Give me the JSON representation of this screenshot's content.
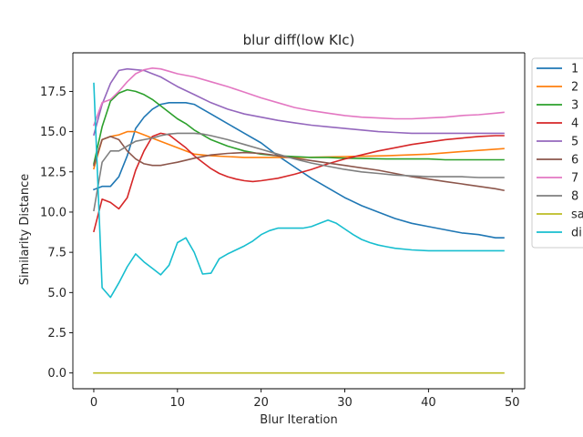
{
  "chart_data": {
    "type": "line",
    "title": "blur diff(low KIc)",
    "xlabel": "Blur Iteration",
    "ylabel": "Similarity Distance",
    "xlim": [
      -2.5,
      51.5
    ],
    "ylim": [
      -0.98,
      19.9
    ],
    "xticks": [
      0,
      10,
      20,
      30,
      40,
      50
    ],
    "yticks": [
      0.0,
      2.5,
      5.0,
      7.5,
      10.0,
      12.5,
      15.0,
      17.5
    ],
    "ytick_labels": [
      "0.0",
      "2.5",
      "5.0",
      "7.5",
      "10.0",
      "12.5",
      "15.0",
      "17.5"
    ],
    "grid": false,
    "legend": "outside-right",
    "series": [
      {
        "name": "1",
        "color": "#1f77b4",
        "x": [
          0,
          1,
          2,
          3,
          4,
          5,
          6,
          7,
          8,
          9,
          10,
          11,
          12,
          13,
          14,
          16,
          18,
          20,
          22,
          24,
          26,
          28,
          30,
          32,
          34,
          36,
          38,
          40,
          42,
          44,
          46,
          48,
          49
        ],
        "y": [
          11.4,
          11.6,
          11.6,
          12.2,
          13.5,
          15.2,
          15.9,
          16.4,
          16.7,
          16.8,
          16.8,
          16.8,
          16.7,
          16.4,
          16.1,
          15.5,
          14.9,
          14.3,
          13.5,
          12.8,
          12.1,
          11.5,
          10.9,
          10.4,
          10.0,
          9.6,
          9.3,
          9.1,
          8.9,
          8.7,
          8.6,
          8.4,
          8.4
        ]
      },
      {
        "name": "2",
        "color": "#ff7f0e",
        "x": [
          0,
          1,
          2,
          3,
          4,
          5,
          6,
          7,
          8,
          9,
          10,
          12,
          14,
          16,
          18,
          20,
          25,
          30,
          35,
          40,
          45,
          49
        ],
        "y": [
          12.7,
          14.5,
          14.7,
          14.8,
          15.0,
          15.0,
          14.8,
          14.6,
          14.4,
          14.2,
          14.0,
          13.6,
          13.5,
          13.45,
          13.4,
          13.4,
          13.4,
          13.45,
          13.5,
          13.6,
          13.8,
          13.95
        ]
      },
      {
        "name": "3",
        "color": "#2ca02c",
        "x": [
          0,
          1,
          2,
          3,
          4,
          5,
          6,
          7,
          8,
          9,
          10,
          11,
          12,
          14,
          16,
          18,
          20,
          22,
          24,
          26,
          28,
          30,
          35,
          40,
          42,
          45,
          49
        ],
        "y": [
          13.0,
          15.3,
          16.9,
          17.4,
          17.6,
          17.5,
          17.3,
          17.0,
          16.6,
          16.2,
          15.8,
          15.5,
          15.1,
          14.5,
          14.1,
          13.8,
          13.6,
          13.5,
          13.45,
          13.4,
          13.4,
          13.35,
          13.3,
          13.3,
          13.25,
          13.25,
          13.25
        ]
      },
      {
        "name": "4",
        "color": "#d62728",
        "x": [
          0,
          1,
          2,
          3,
          4,
          5,
          6,
          7,
          8,
          9,
          10,
          11,
          12,
          13,
          14,
          15,
          16,
          17,
          18,
          19,
          20,
          22,
          24,
          26,
          28,
          30,
          32,
          34,
          36,
          38,
          40,
          42,
          44,
          46,
          48,
          49
        ],
        "y": [
          8.8,
          10.8,
          10.6,
          10.2,
          10.9,
          12.6,
          13.8,
          14.7,
          14.9,
          14.8,
          14.4,
          14.0,
          13.5,
          13.1,
          12.7,
          12.4,
          12.2,
          12.05,
          11.95,
          11.9,
          11.95,
          12.1,
          12.35,
          12.65,
          13.0,
          13.3,
          13.55,
          13.8,
          14.0,
          14.2,
          14.35,
          14.5,
          14.6,
          14.7,
          14.75,
          14.75
        ]
      },
      {
        "name": "5",
        "color": "#9467bd",
        "x": [
          0,
          1,
          2,
          3,
          4,
          5,
          6,
          7,
          8,
          9,
          10,
          12,
          14,
          16,
          18,
          20,
          22,
          24,
          26,
          28,
          30,
          32,
          34,
          36,
          38,
          40,
          42,
          44,
          46,
          49
        ],
        "y": [
          14.8,
          16.7,
          18.0,
          18.8,
          18.9,
          18.85,
          18.8,
          18.6,
          18.4,
          18.1,
          17.8,
          17.3,
          16.8,
          16.4,
          16.1,
          15.9,
          15.7,
          15.55,
          15.4,
          15.3,
          15.2,
          15.1,
          15.0,
          14.95,
          14.9,
          14.9,
          14.9,
          14.9,
          14.9,
          14.9
        ]
      },
      {
        "name": "6",
        "color": "#8c564b",
        "x": [
          0,
          1,
          2,
          3,
          4,
          5,
          6,
          7,
          8,
          9,
          10,
          12,
          14,
          16,
          18,
          20,
          22,
          24,
          26,
          28,
          30,
          32,
          34,
          36,
          38,
          40,
          42,
          44,
          46,
          48,
          49
        ],
        "y": [
          12.9,
          14.5,
          14.7,
          14.5,
          13.8,
          13.3,
          13.0,
          12.9,
          12.9,
          13.0,
          13.1,
          13.35,
          13.55,
          13.65,
          13.7,
          13.65,
          13.5,
          13.35,
          13.2,
          13.05,
          12.9,
          12.75,
          12.6,
          12.4,
          12.2,
          12.05,
          11.9,
          11.75,
          11.6,
          11.45,
          11.35
        ]
      },
      {
        "name": "7",
        "color": "#e377c2",
        "x": [
          0,
          1,
          2,
          3,
          4,
          5,
          6,
          7,
          8,
          9,
          10,
          12,
          14,
          16,
          18,
          20,
          22,
          24,
          26,
          28,
          30,
          32,
          34,
          36,
          38,
          40,
          42,
          44,
          46,
          48,
          49
        ],
        "y": [
          15.4,
          16.8,
          17.0,
          17.5,
          18.1,
          18.6,
          18.85,
          18.95,
          18.9,
          18.75,
          18.6,
          18.4,
          18.1,
          17.8,
          17.45,
          17.1,
          16.8,
          16.5,
          16.3,
          16.15,
          16.0,
          15.9,
          15.85,
          15.8,
          15.8,
          15.85,
          15.9,
          16.0,
          16.05,
          16.15,
          16.2
        ]
      },
      {
        "name": "8",
        "color": "#7f7f7f",
        "x": [
          0,
          1,
          2,
          3,
          4,
          5,
          6,
          7,
          8,
          9,
          10,
          11,
          12,
          13,
          14,
          16,
          18,
          20,
          22,
          24,
          26,
          28,
          30,
          32,
          34,
          36,
          38,
          40,
          42,
          44,
          46,
          48,
          49
        ],
        "y": [
          10.1,
          13.1,
          13.8,
          13.8,
          14.1,
          14.4,
          14.5,
          14.6,
          14.75,
          14.85,
          14.9,
          14.9,
          14.9,
          14.85,
          14.75,
          14.5,
          14.2,
          13.9,
          13.6,
          13.3,
          13.05,
          12.85,
          12.65,
          12.5,
          12.4,
          12.3,
          12.25,
          12.2,
          12.2,
          12.2,
          12.15,
          12.15,
          12.15
        ]
      },
      {
        "name": "sa",
        "color": "#bcbd22",
        "x": [
          0,
          49
        ],
        "y": [
          0.0,
          0.0
        ]
      },
      {
        "name": "di",
        "color": "#17becf",
        "x": [
          0,
          1,
          2,
          3,
          4,
          5,
          6,
          7,
          8,
          9,
          10,
          11,
          12,
          13,
          14,
          15,
          16,
          17,
          18,
          19,
          20,
          21,
          22,
          23,
          24,
          25,
          26,
          27,
          28,
          29,
          30,
          31,
          32,
          33,
          34,
          35,
          36,
          38,
          40,
          42,
          44,
          46,
          48,
          49
        ],
        "y": [
          18.0,
          5.3,
          4.7,
          5.6,
          6.6,
          7.4,
          6.9,
          6.5,
          6.1,
          6.7,
          8.1,
          8.4,
          7.5,
          6.15,
          6.2,
          7.1,
          7.4,
          7.65,
          7.9,
          8.2,
          8.6,
          8.85,
          9.0,
          9.0,
          9.0,
          9.0,
          9.1,
          9.3,
          9.5,
          9.3,
          8.95,
          8.6,
          8.3,
          8.1,
          7.95,
          7.85,
          7.75,
          7.65,
          7.6,
          7.6,
          7.6,
          7.6,
          7.6,
          7.6
        ]
      }
    ]
  }
}
